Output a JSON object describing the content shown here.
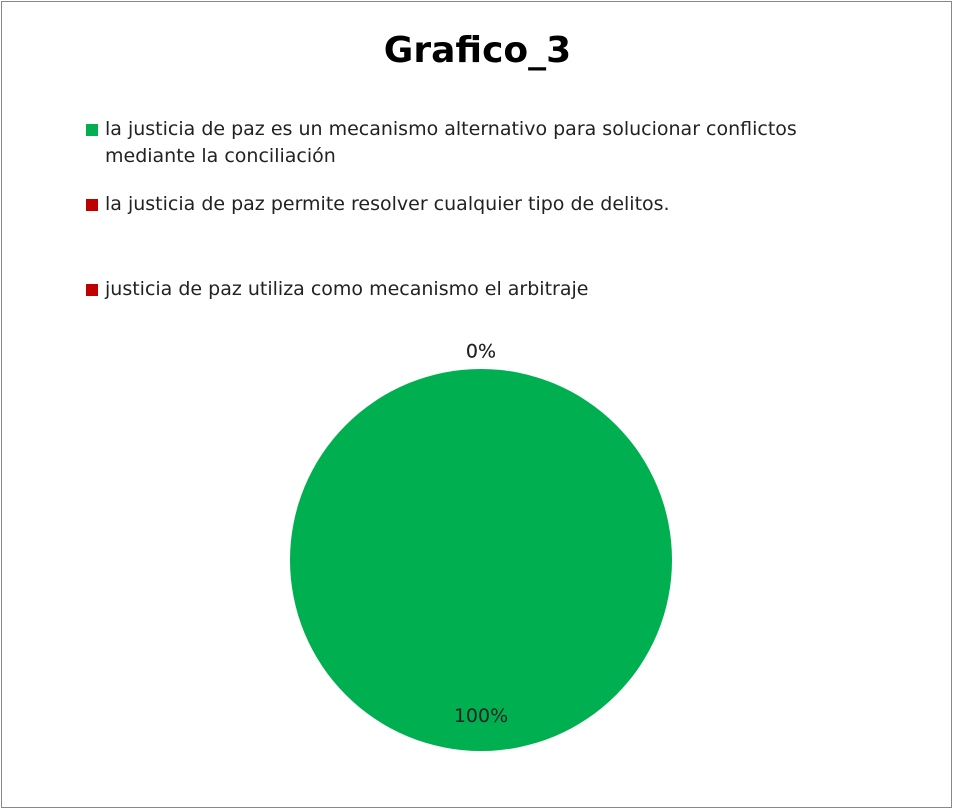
{
  "chart_data": {
    "type": "pie",
    "title": "Grafico_3",
    "categories": [
      "la justicia de paz es un mecanismo alternativo para solucionar conflictos mediante la conciliación",
      "la justicia de paz permite resolver cualquier tipo de delitos.",
      "justicia de paz utiliza como mecanismo el arbitraje"
    ],
    "values": [
      100,
      0,
      0
    ],
    "value_labels": [
      "100%",
      "0%",
      "0%"
    ],
    "colors": [
      "#00b050",
      "#c00000",
      "#c00000"
    ],
    "legend": "top"
  }
}
